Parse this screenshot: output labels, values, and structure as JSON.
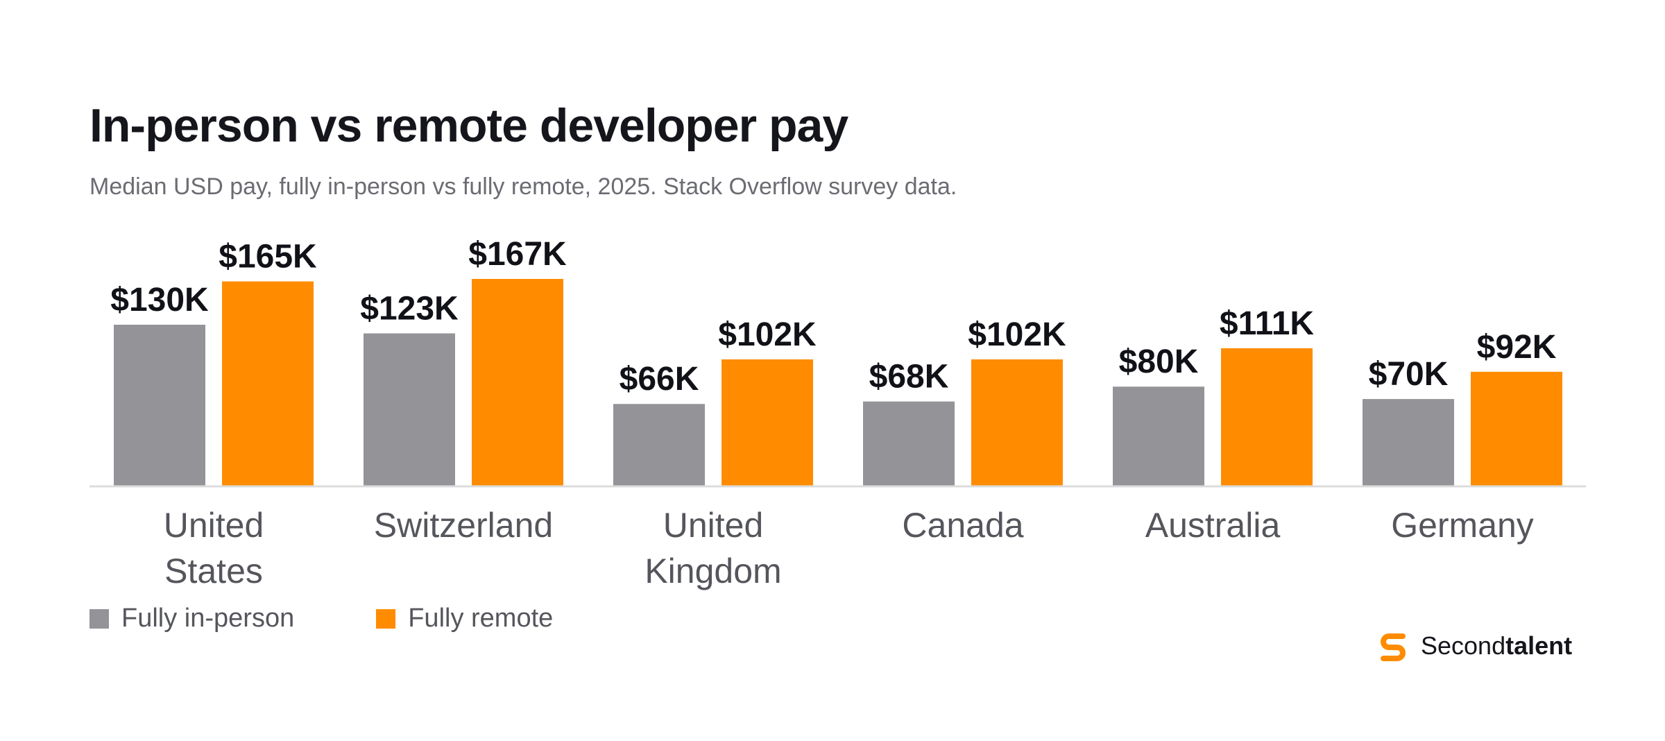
{
  "title": "In-person vs remote developer pay",
  "subtitle": "Median USD pay, fully in-person vs fully remote, 2025. Stack Overflow survey data.",
  "colors": {
    "in_person": "#939398",
    "remote": "#ff8c00",
    "baseline": "#dcdcdc",
    "brand": "#ff8c00"
  },
  "chart_data": {
    "type": "bar",
    "categories": [
      "United States",
      "Switzerland",
      "United Kingdom",
      "Canada",
      "Australia",
      "Germany"
    ],
    "category_lines": [
      [
        "United",
        "States"
      ],
      [
        "Switzerland"
      ],
      [
        "United",
        "Kingdom"
      ],
      [
        "Canada"
      ],
      [
        "Australia"
      ],
      [
        "Germany"
      ]
    ],
    "series": [
      {
        "name": "Fully in-person",
        "values": [
          130,
          123,
          66,
          68,
          80,
          70
        ],
        "labels": [
          "$130K",
          "$123K",
          "$66K",
          "$68K",
          "$80K",
          "$70K"
        ]
      },
      {
        "name": "Fully remote",
        "values": [
          165,
          167,
          102,
          102,
          111,
          92
        ],
        "labels": [
          "$165K",
          "$167K",
          "$102K",
          "$102K",
          "$111K",
          "$92K"
        ]
      }
    ],
    "unit": "USD thousands",
    "ylim": [
      0,
      167
    ],
    "grid": false,
    "legend_position": "bottom-left"
  },
  "legend": {
    "in_person": "Fully in-person",
    "remote": "Fully remote"
  },
  "logo": {
    "regular": "Second",
    "bold": "talent",
    "icon": "secondtalent-s-icon"
  }
}
